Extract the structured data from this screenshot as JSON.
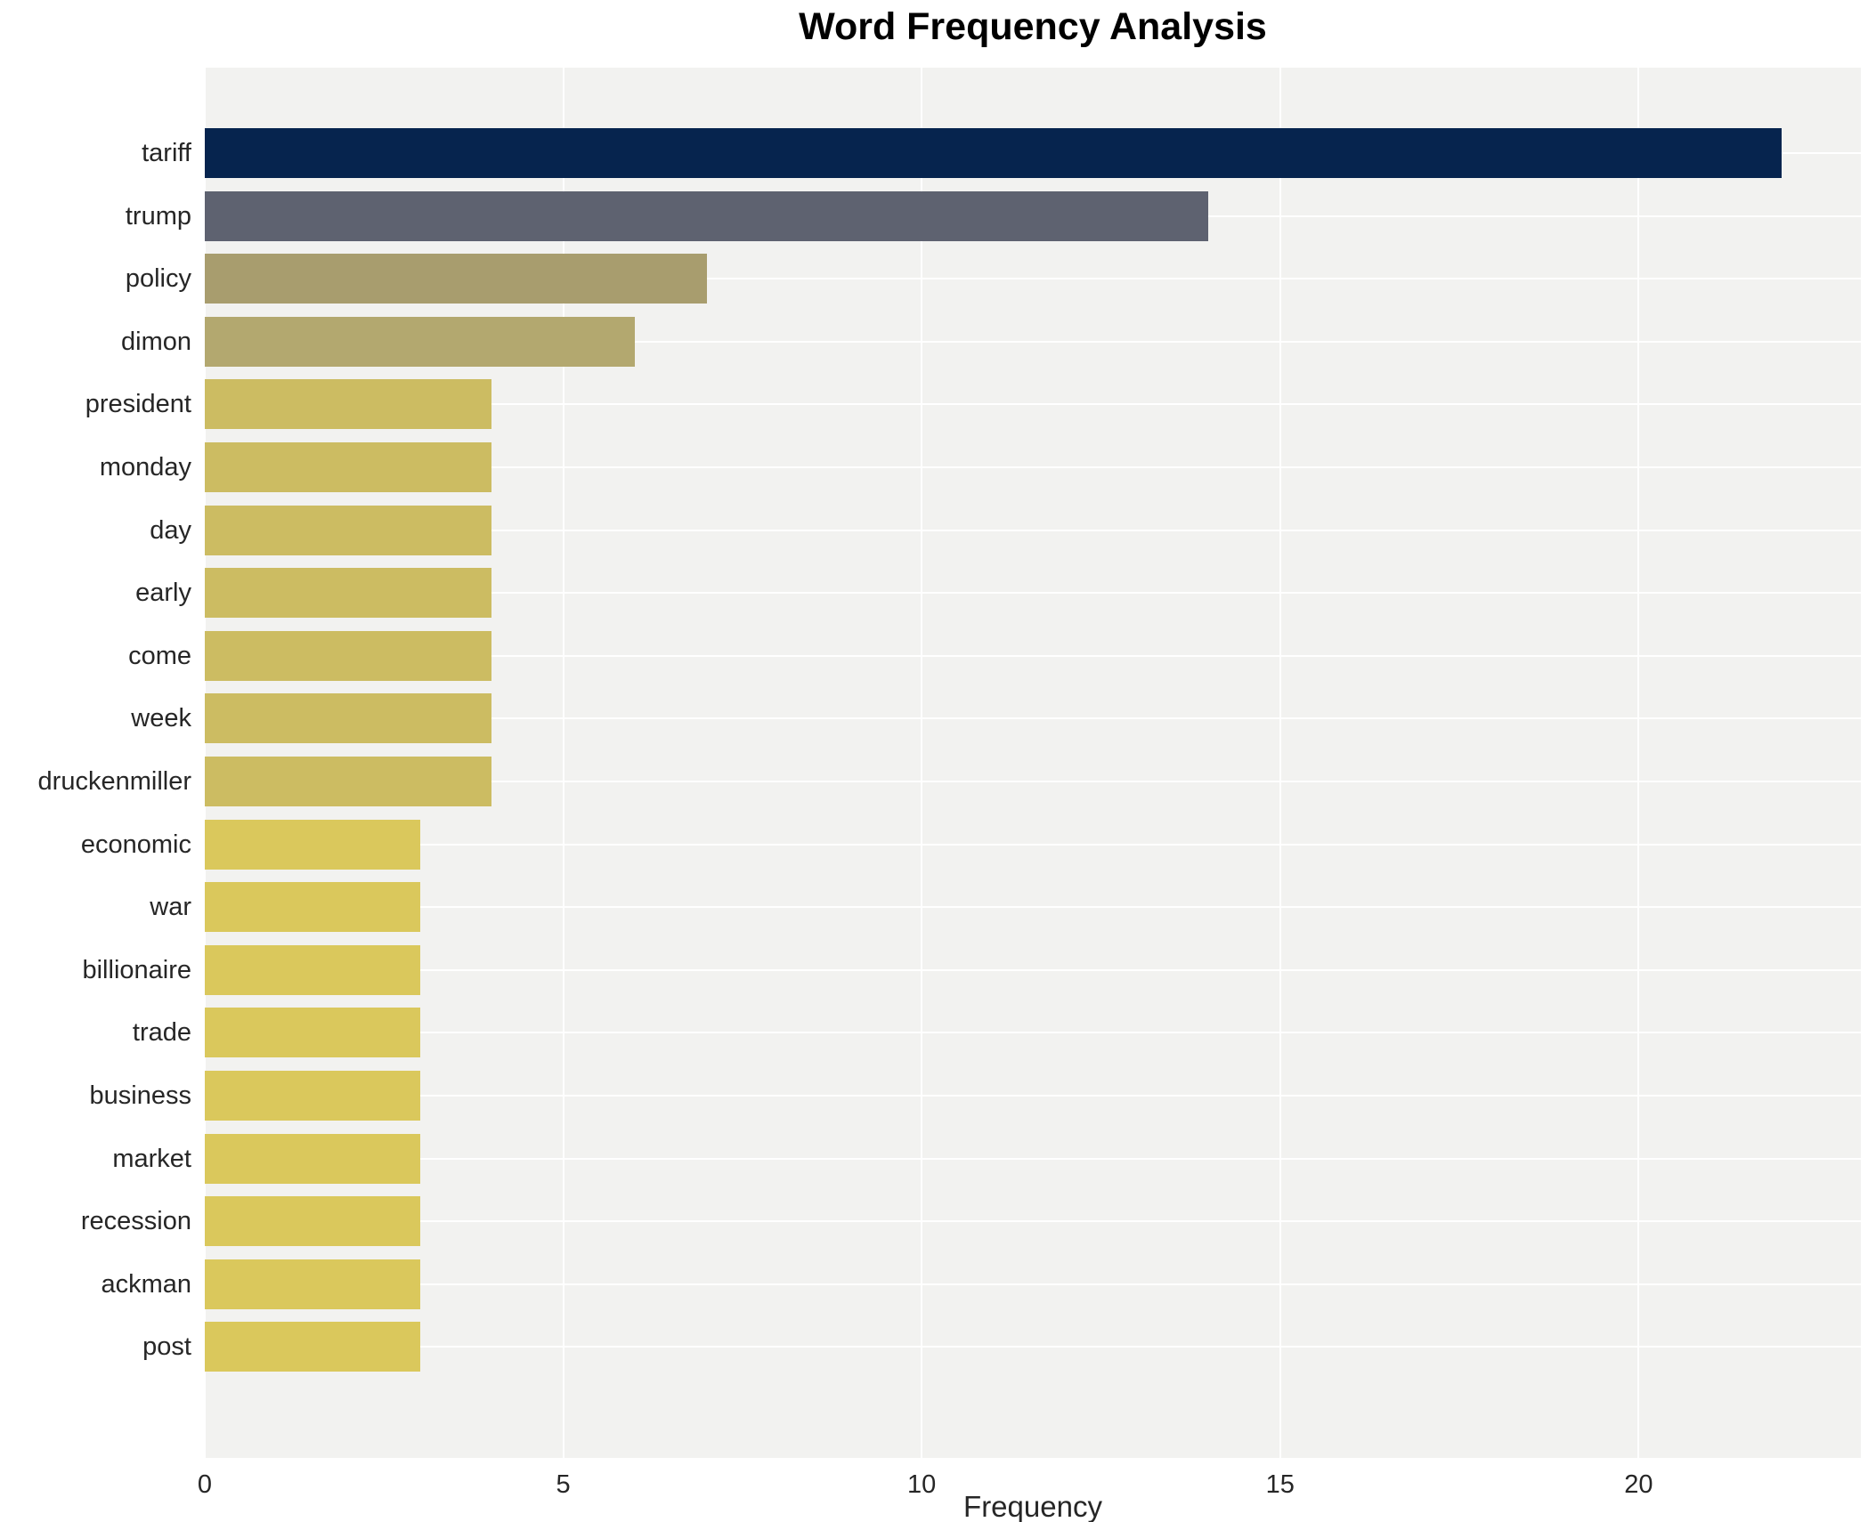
{
  "title": "Word Frequency Analysis",
  "chart_data": {
    "type": "bar",
    "orientation": "horizontal",
    "title": "Word Frequency Analysis",
    "xlabel": "Frequency",
    "ylabel": "",
    "categories": [
      "tariff",
      "trump",
      "policy",
      "dimon",
      "president",
      "monday",
      "day",
      "early",
      "come",
      "week",
      "druckenmiller",
      "economic",
      "war",
      "billionaire",
      "trade",
      "business",
      "market",
      "recession",
      "ackman",
      "post"
    ],
    "values": [
      22,
      14,
      7,
      6,
      4,
      4,
      4,
      4,
      4,
      4,
      4,
      3,
      3,
      3,
      3,
      3,
      3,
      3,
      3,
      3
    ],
    "bar_colors": [
      "#06244e",
      "#5e6270",
      "#a89d6e",
      "#b3a86f",
      "#ccbc62",
      "#ccbc62",
      "#ccbc62",
      "#ccbc62",
      "#ccbc62",
      "#ccbc62",
      "#ccbc62",
      "#dac85c",
      "#dac85c",
      "#dac85c",
      "#dac85c",
      "#dac85c",
      "#dac85c",
      "#dac85c",
      "#dac85c",
      "#dac85c"
    ],
    "xticks": [
      0,
      5,
      10,
      15,
      20
    ],
    "xlim": [
      0,
      23.1
    ],
    "grid": true,
    "legend": "none",
    "plot_background": "#f2f2f0",
    "grid_color": "#ffffff",
    "text_color": "#262626"
  }
}
